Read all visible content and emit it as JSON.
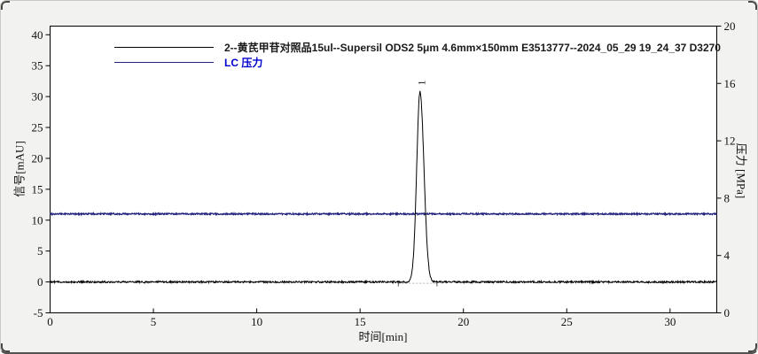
{
  "window": {
    "background_color": "#f2f2f0",
    "plot_background_color": "#ffffff"
  },
  "chart_data": {
    "type": "line",
    "grid": false,
    "legend_position": "top-left-inside",
    "x_axis": {
      "label": "时间[min]",
      "min": 0,
      "max": 32.26,
      "ticks": [
        0,
        5,
        10,
        15,
        20,
        25,
        30
      ]
    },
    "y_left_axis": {
      "label": "信号[mAU]",
      "min": -5,
      "max": 41.4,
      "ticks": [
        40,
        35,
        30,
        25,
        20,
        15,
        10,
        5,
        0,
        -5
      ]
    },
    "y_right_axis": {
      "label": "压力 [MPa]",
      "min": 0,
      "max": 20,
      "ticks": [
        20,
        16,
        12,
        8,
        4,
        0
      ]
    },
    "series": [
      {
        "name": "2--黄芪甲苷对照品15ul--Supersil ODS2 5μm  4.6mm×150mm   E3513777--2024_05_29 19_24_37 D3270",
        "axis": "left",
        "color": "#000000",
        "label_color": "#1a1a1a",
        "baseline": 0.0,
        "noise_amplitude": 0.28,
        "peaks": [
          {
            "label": "1",
            "retention_time": 17.9,
            "height": 30.8,
            "sigma_left": 0.16,
            "sigma_right": 0.19,
            "integration_start": 16.85,
            "integration_end": 18.72
          }
        ]
      },
      {
        "name": "LC 压力",
        "axis": "right",
        "color": "#23237d",
        "label_color": "#0000cc",
        "baseline": 6.9,
        "noise_amplitude": 0.1,
        "peaks": []
      }
    ]
  }
}
